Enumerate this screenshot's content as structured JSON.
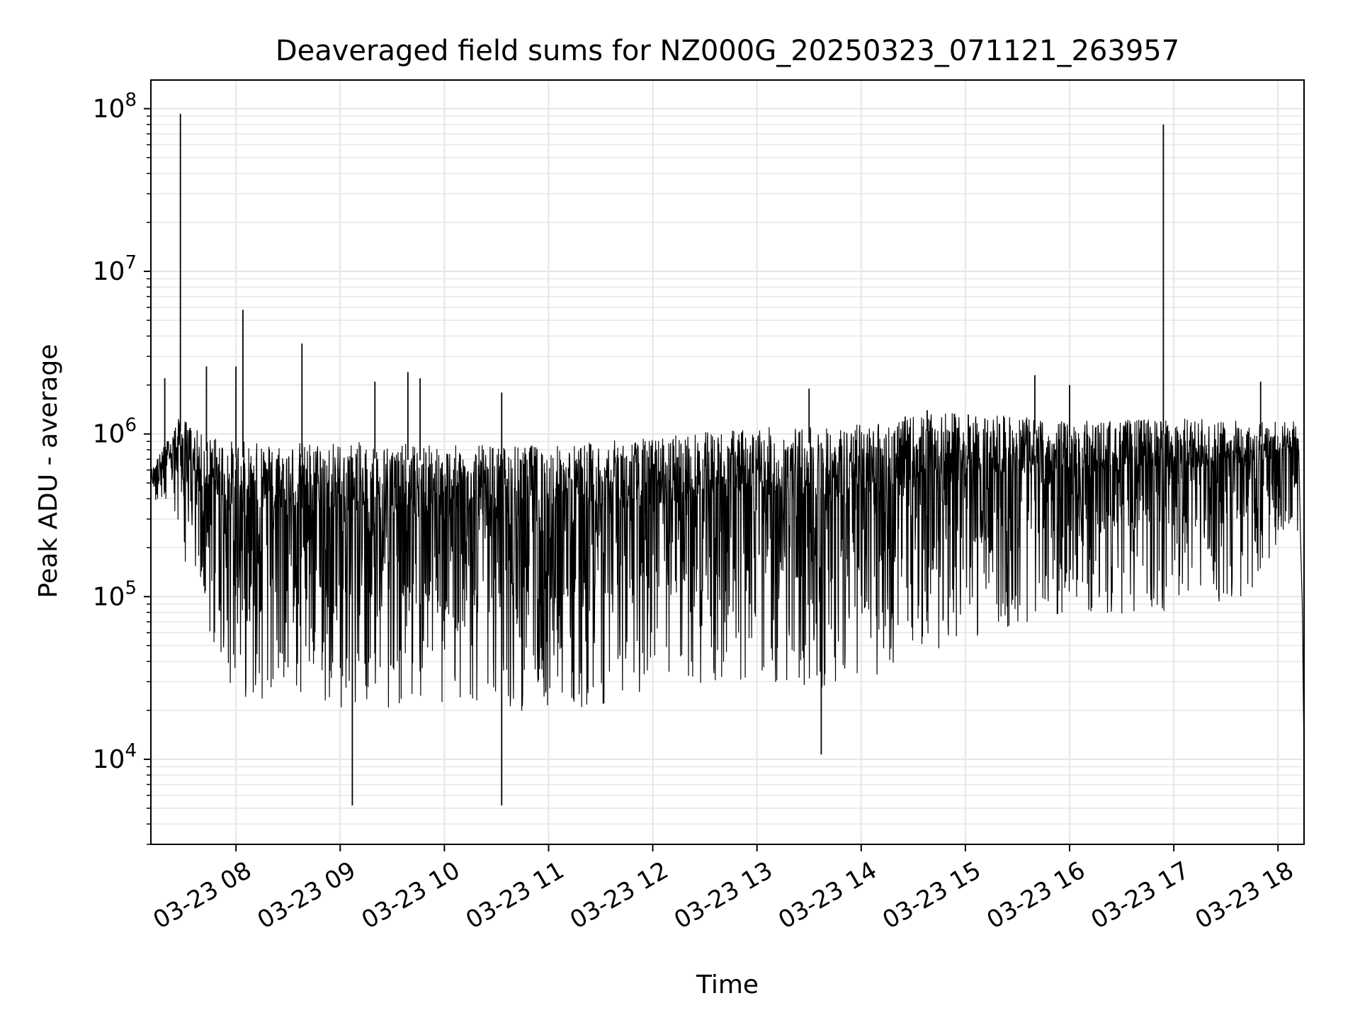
{
  "chart_data": {
    "type": "line",
    "title": "Deaveraged field sums for NZ000G_20250323_071121_263957",
    "xlabel": "Time",
    "ylabel": "Peak ADU - average",
    "yscale": "log",
    "ylim": [
      3000,
      150000000
    ],
    "xlim": [
      "03-23 07:11",
      "03-23 18:15"
    ],
    "grid": true,
    "line_color": "#000000",
    "grid_color": "#e6e6e6",
    "x_ticks": [
      {
        "value": "03-23 08:00",
        "label": "03-23 08"
      },
      {
        "value": "03-23 09:00",
        "label": "03-23 09"
      },
      {
        "value": "03-23 10:00",
        "label": "03-23 10"
      },
      {
        "value": "03-23 11:00",
        "label": "03-23 11"
      },
      {
        "value": "03-23 12:00",
        "label": "03-23 12"
      },
      {
        "value": "03-23 13:00",
        "label": "03-23 13"
      },
      {
        "value": "03-23 14:00",
        "label": "03-23 14"
      },
      {
        "value": "03-23 15:00",
        "label": "03-23 15"
      },
      {
        "value": "03-23 16:00",
        "label": "03-23 16"
      },
      {
        "value": "03-23 17:00",
        "label": "03-23 17"
      },
      {
        "value": "03-23 18:00",
        "label": "03-23 18"
      }
    ],
    "y_ticks": [
      {
        "value": 10000,
        "base": "10",
        "exp": "4"
      },
      {
        "value": 100000,
        "base": "10",
        "exp": "5"
      },
      {
        "value": 1000000,
        "base": "10",
        "exp": "6"
      },
      {
        "value": 10000000,
        "base": "10",
        "exp": "7"
      },
      {
        "value": 100000000,
        "base": "10",
        "exp": "8"
      }
    ],
    "series": [
      {
        "upper_envelope": [
          {
            "x": "03-23 07:11",
            "y": 600000
          },
          {
            "x": "03-23 07:20",
            "y": 900000
          },
          {
            "x": "03-23 07:28",
            "y": 1300000
          },
          {
            "x": "03-23 07:40",
            "y": 1000000
          },
          {
            "x": "03-23 08:00",
            "y": 900000
          },
          {
            "x": "03-23 09:00",
            "y": 900000
          },
          {
            "x": "03-23 10:00",
            "y": 850000
          },
          {
            "x": "03-23 11:00",
            "y": 850000
          },
          {
            "x": "03-23 12:00",
            "y": 950000
          },
          {
            "x": "03-23 13:00",
            "y": 1100000
          },
          {
            "x": "03-23 13:45",
            "y": 1100000
          },
          {
            "x": "03-23 14:30",
            "y": 1300000
          },
          {
            "x": "03-23 15:00",
            "y": 1350000
          },
          {
            "x": "03-23 16:00",
            "y": 1200000
          },
          {
            "x": "03-23 17:00",
            "y": 1250000
          },
          {
            "x": "03-23 18:00",
            "y": 1200000
          }
        ],
        "lower_envelope": [
          {
            "x": "03-23 07:11",
            "y": 400000
          },
          {
            "x": "03-23 07:25",
            "y": 250000
          },
          {
            "x": "03-23 07:40",
            "y": 60000
          },
          {
            "x": "03-23 08:00",
            "y": 20000
          },
          {
            "x": "03-23 09:00",
            "y": 17000
          },
          {
            "x": "03-23 10:00",
            "y": 17000
          },
          {
            "x": "03-23 11:00",
            "y": 16000
          },
          {
            "x": "03-23 12:00",
            "y": 20000
          },
          {
            "x": "03-23 13:00",
            "y": 25000
          },
          {
            "x": "03-23 13:45",
            "y": 20000
          },
          {
            "x": "03-23 14:00",
            "y": 25000
          },
          {
            "x": "03-23 15:00",
            "y": 45000
          },
          {
            "x": "03-23 16:00",
            "y": 65000
          },
          {
            "x": "03-23 17:00",
            "y": 70000
          },
          {
            "x": "03-23 17:45",
            "y": 90000
          },
          {
            "x": "03-23 18:00",
            "y": 200000
          }
        ],
        "spikes": [
          {
            "x": "03-23 07:28",
            "y": 93000000
          },
          {
            "x": "03-23 16:54",
            "y": 80000000
          },
          {
            "x": "03-23 08:04",
            "y": 5800000
          },
          {
            "x": "03-23 08:38",
            "y": 3600000
          },
          {
            "x": "03-23 09:07",
            "y": 5200
          },
          {
            "x": "03-23 10:33",
            "y": 5200
          },
          {
            "x": "03-23 10:33",
            "y": 1800000
          },
          {
            "x": "03-23 09:20",
            "y": 2100000
          },
          {
            "x": "03-23 09:46",
            "y": 2200000
          },
          {
            "x": "03-23 09:39",
            "y": 2400000
          },
          {
            "x": "03-23 13:30",
            "y": 1900000
          },
          {
            "x": "03-23 13:37",
            "y": 10700
          },
          {
            "x": "03-23 14:38",
            "y": 1400000
          },
          {
            "x": "03-23 15:40",
            "y": 2300000
          },
          {
            "x": "03-23 16:00",
            "y": 2000000
          },
          {
            "x": "03-23 07:43",
            "y": 2600000
          },
          {
            "x": "03-23 08:00",
            "y": 2600000
          },
          {
            "x": "03-23 07:19",
            "y": 2200000
          },
          {
            "x": "03-23 17:50",
            "y": 2100000
          },
          {
            "x": "03-23 18:15",
            "y": 10000
          }
        ]
      }
    ]
  }
}
